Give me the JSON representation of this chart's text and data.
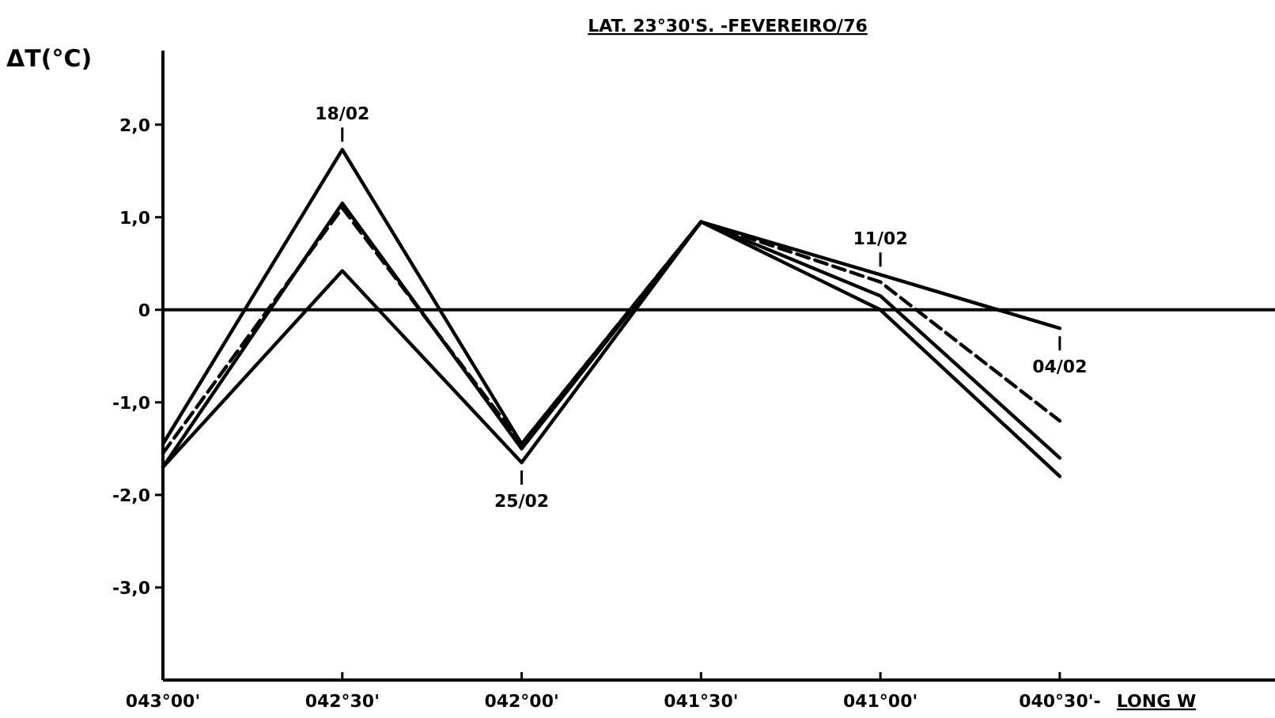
{
  "chart_data": {
    "type": "line",
    "title": "LAT. 23°30'S. -FEVEREIRO/76",
    "ylabel": "ΔT(°C)",
    "xlabel": "LONG W",
    "categories": [
      "043°00'",
      "042°30'",
      "042°00'",
      "041°30'",
      "041°00'",
      "040°30'-"
    ],
    "ylim": [
      -4.0,
      2.8
    ],
    "yticks": [
      {
        "value": 2,
        "label": "2,0"
      },
      {
        "value": 1,
        "label": "1,0"
      },
      0,
      {
        "value": -1,
        "label": "-1,0"
      },
      {
        "value": -2,
        "label": "-2,0"
      },
      {
        "value": -3,
        "label": "-3,0"
      }
    ],
    "series": [
      {
        "color": "#000000",
        "values": [
          -1.45,
          1.73,
          -1.45,
          0.95,
          0.15,
          -1.6
        ]
      },
      {
        "color": "#000000",
        "values": [
          -1.7,
          1.15,
          -1.5,
          0.95,
          0.0,
          -1.8
        ]
      },
      {
        "color": "#000000",
        "line_style": "dashed",
        "values": [
          -1.55,
          1.1,
          -1.45,
          0.95,
          0.3,
          -1.2
        ]
      },
      {
        "color": "#000000",
        "values": [
          -1.7,
          0.42,
          -1.65,
          0.95,
          0.38,
          -0.2
        ]
      }
    ],
    "ref_lines": [
      {
        "axis": "y",
        "value": 0,
        "color": "#000000"
      }
    ],
    "annotations": [
      {
        "text": "18/02",
        "x": "042°30'",
        "y": 1.73
      },
      {
        "text": "25/02",
        "x": "042°00'",
        "y": -1.65
      },
      {
        "text": "11/02",
        "x": "041°00'",
        "y": 0.38
      },
      {
        "text": "04/02",
        "x": "040°30'-",
        "y": -0.2
      }
    ],
    "line_style": "solid"
  }
}
